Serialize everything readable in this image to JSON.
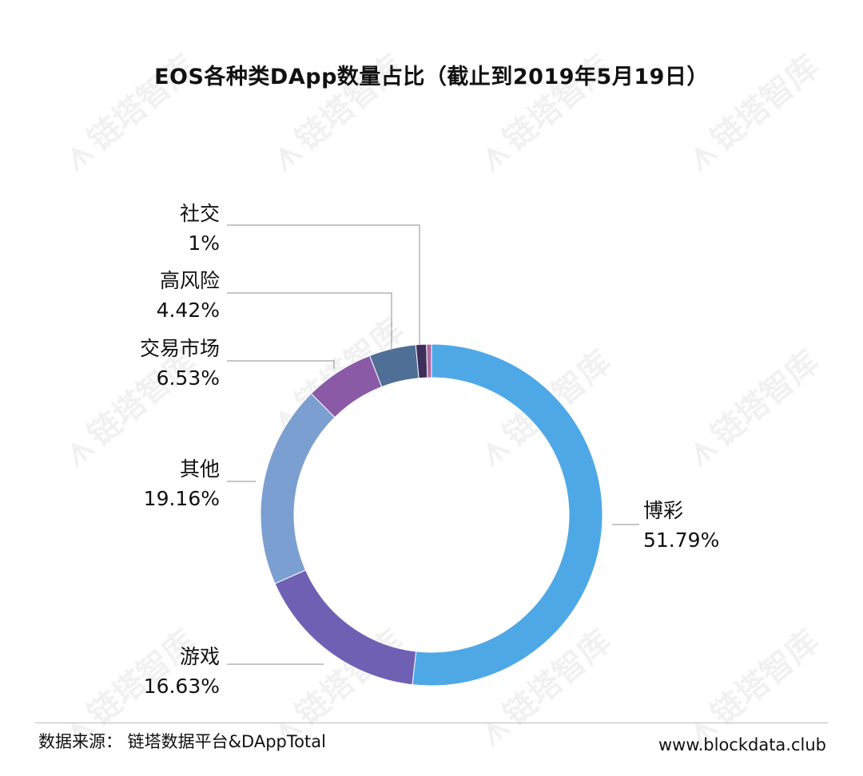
{
  "chart_data": {
    "type": "pie",
    "title": "EOS各种类DApp数量占比（截止到2019年5月19日）",
    "slices": [
      {
        "label": "博彩",
        "value": 51.79,
        "value_label": "51.79%",
        "color": "#4fa8e6"
      },
      {
        "label": "游戏",
        "value": 16.63,
        "value_label": "16.63%",
        "color": "#7060b4"
      },
      {
        "label": "其他",
        "value": 19.16,
        "value_label": "19.16%",
        "color": "#7b9fd0"
      },
      {
        "label": "交易市场",
        "value": 6.53,
        "value_label": "6.53%",
        "color": "#8b5aa7"
      },
      {
        "label": "高风险",
        "value": 4.42,
        "value_label": "4.42%",
        "color": "#4f6f96"
      },
      {
        "label": "社交",
        "value": 1,
        "value_label": "1%",
        "color": "#3c2f5c"
      },
      {
        "label": "",
        "value": 0.47,
        "value_label": "",
        "color": "#b06aa0"
      }
    ]
  },
  "footer": {
    "source": "数据来源：  链塔数据平台&DAppTotal",
    "site": "www.blockdata.club"
  },
  "watermark": {
    "text": "链塔智库",
    "icon": "blockdata-logo-icon"
  }
}
